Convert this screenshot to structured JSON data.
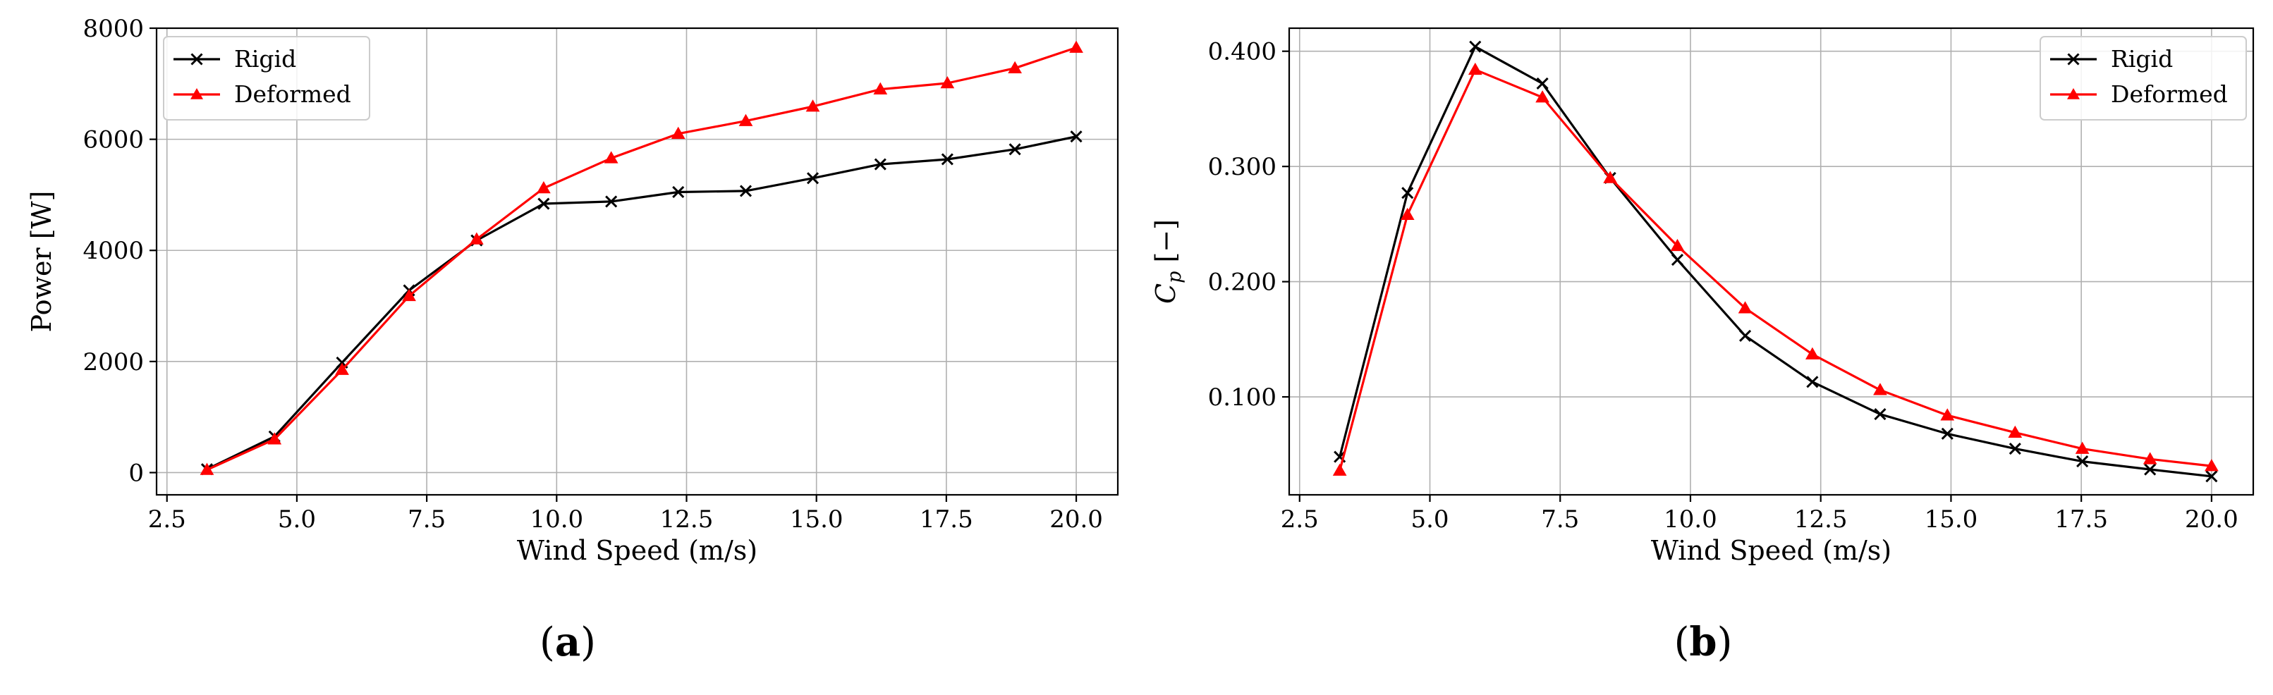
{
  "figure": {
    "panels": [
      {
        "label_a": "(",
        "label_b": "a",
        "label_c": ")"
      },
      {
        "label_a": "(",
        "label_b": "b",
        "label_c": ")"
      }
    ]
  },
  "chart_data": [
    {
      "type": "line",
      "xlabel": "Wind Speed (m/s)",
      "ylabel": "Power [W]",
      "xlim": [
        2.3,
        20.8
      ],
      "ylim": [
        -400,
        8000
      ],
      "xticks": [
        2.5,
        5.0,
        7.5,
        10.0,
        12.5,
        15.0,
        17.5,
        20.0
      ],
      "xtick_labels": [
        "2.5",
        "5.0",
        "7.5",
        "10.0",
        "12.5",
        "15.0",
        "17.5",
        "20.0"
      ],
      "yticks": [
        0,
        2000,
        4000,
        6000,
        8000
      ],
      "ytick_labels": [
        "0",
        "2000",
        "4000",
        "6000",
        "8000"
      ],
      "grid": true,
      "legend_position": "top-left",
      "x": [
        3.27,
        4.57,
        5.87,
        7.16,
        8.46,
        9.75,
        11.05,
        12.34,
        13.64,
        14.93,
        16.23,
        17.52,
        18.82,
        20.0
      ],
      "series": [
        {
          "name": "Rigid",
          "color": "#000000",
          "marker": "x",
          "values": [
            60,
            650,
            1980,
            3280,
            4180,
            4840,
            4880,
            5050,
            5070,
            5300,
            5550,
            5640,
            5820,
            6050
          ]
        },
        {
          "name": "Deformed",
          "color": "#ff0000",
          "marker": "triangle",
          "values": [
            50,
            600,
            1850,
            3180,
            4200,
            5120,
            5660,
            6100,
            6330,
            6590,
            6900,
            7010,
            7280,
            7650
          ]
        }
      ]
    },
    {
      "type": "line",
      "xlabel": "Wind Speed (m/s)",
      "ylabel_main": "C",
      "ylabel_sub": "p",
      "ylabel_unit": " [−]",
      "xlim": [
        2.3,
        20.8
      ],
      "ylim": [
        0.015,
        0.42
      ],
      "xticks": [
        2.5,
        5.0,
        7.5,
        10.0,
        12.5,
        15.0,
        17.5,
        20.0
      ],
      "xtick_labels": [
        "2.5",
        "5.0",
        "7.5",
        "10.0",
        "12.5",
        "15.0",
        "17.5",
        "20.0"
      ],
      "yticks": [
        0.1,
        0.2,
        0.3,
        0.4
      ],
      "ytick_labels": [
        "0.100",
        "0.200",
        "0.300",
        "0.400"
      ],
      "grid": true,
      "legend_position": "top-right",
      "x": [
        3.27,
        4.57,
        5.87,
        7.16,
        8.46,
        9.75,
        11.05,
        12.34,
        13.64,
        14.93,
        16.23,
        17.52,
        18.82,
        20.0
      ],
      "series": [
        {
          "name": "Rigid",
          "color": "#000000",
          "marker": "x",
          "values": [
            0.048,
            0.277,
            0.404,
            0.372,
            0.29,
            0.219,
            0.153,
            0.113,
            0.085,
            0.068,
            0.055,
            0.044,
            0.037,
            0.031
          ]
        },
        {
          "name": "Deformed",
          "color": "#ff0000",
          "marker": "triangle",
          "values": [
            0.036,
            0.258,
            0.384,
            0.36,
            0.29,
            0.231,
            0.177,
            0.137,
            0.106,
            0.084,
            0.069,
            0.055,
            0.046,
            0.04
          ]
        }
      ]
    }
  ]
}
